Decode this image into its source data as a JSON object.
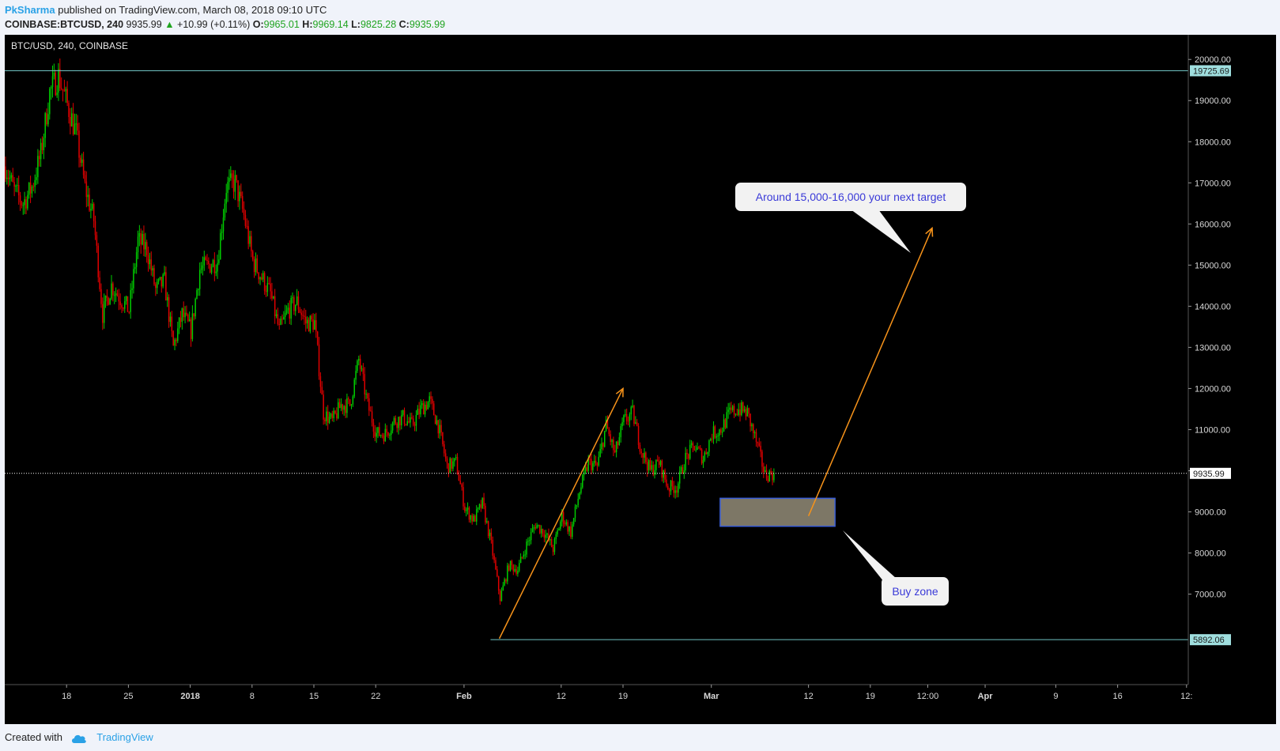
{
  "header": {
    "author": "PkSharma",
    "published_text": "published on TradingView.com, March 08, 2018 09:10 UTC",
    "symbol": "COINBASE:BTCUSD, 240",
    "last": "9935.99",
    "change_arrow": "▲",
    "change": "+10.99 (+0.11%)",
    "open_label": "O:",
    "open": "9965.01",
    "high_label": "H:",
    "high": "9969.14",
    "low_label": "L:",
    "low": "9825.28",
    "close_label": "C:",
    "close": "9935.99"
  },
  "footer": {
    "created_with": "Created with",
    "brand": "TradingView"
  },
  "colors": {
    "up": "#00cc00",
    "down": "#e00000",
    "arrow": "#f7931a",
    "hline": "#6fc2c2",
    "buy_zone_fill": "#7d7766",
    "buy_zone_stroke": "#3a5ed8",
    "callout_text": "#3a3ad8"
  },
  "chart_data": {
    "type": "candlestick",
    "pane_title": "BTC/USD, 240, COINBASE",
    "x_ticks": [
      "18",
      "25",
      "2018",
      "8",
      "15",
      "22",
      "Feb",
      "12",
      "19",
      "Mar",
      "12",
      "19",
      "12:00",
      "Apr",
      "9",
      "16",
      "12:"
    ],
    "y_ticks": [
      7000,
      8000,
      9000,
      10000,
      11000,
      12000,
      13000,
      14000,
      15000,
      16000,
      17000,
      18000,
      19000,
      20000
    ],
    "y_tick_labels": [
      "7000.00",
      "8000.00",
      "9000.00",
      "11000.00",
      "12000.00",
      "13000.00",
      "14000.00",
      "15000.00",
      "16000.00",
      "17000.00",
      "18000.00",
      "19000.00",
      "20000.00"
    ],
    "ylim": [
      4800,
      20600
    ],
    "x_range": [
      "2017-12-11",
      "2018-04-24"
    ],
    "price_path": [
      [
        "2017-12-11",
        17400
      ],
      [
        "2017-12-12",
        16800
      ],
      [
        "2017-12-13",
        16500
      ],
      [
        "2017-12-14",
        16900
      ],
      [
        "2017-12-15",
        17700
      ],
      [
        "2017-12-16",
        19200
      ],
      [
        "2017-12-17",
        19600
      ],
      [
        "2017-12-18",
        18900
      ],
      [
        "2017-12-19",
        18200
      ],
      [
        "2017-12-20",
        16900
      ],
      [
        "2017-12-21",
        16100
      ],
      [
        "2017-12-22",
        13800
      ],
      [
        "2017-12-23",
        14500
      ],
      [
        "2017-12-24",
        14200
      ],
      [
        "2017-12-25",
        13900
      ],
      [
        "2017-12-26",
        15600
      ],
      [
        "2017-12-27",
        15400
      ],
      [
        "2017-12-28",
        14400
      ],
      [
        "2017-12-29",
        14600
      ],
      [
        "2017-12-30",
        13000
      ],
      [
        "2017-12-31",
        13800
      ],
      [
        "2018-01-01",
        13400
      ],
      [
        "2018-01-02",
        14900
      ],
      [
        "2018-01-03",
        15000
      ],
      [
        "2018-01-04",
        15100
      ],
      [
        "2018-01-05",
        16900
      ],
      [
        "2018-01-06",
        17000
      ],
      [
        "2018-01-07",
        16200
      ],
      [
        "2018-01-08",
        15100
      ],
      [
        "2018-01-09",
        14700
      ],
      [
        "2018-01-10",
        14300
      ],
      [
        "2018-01-11",
        13400
      ],
      [
        "2018-01-12",
        13900
      ],
      [
        "2018-01-13",
        14100
      ],
      [
        "2018-01-14",
        13600
      ],
      [
        "2018-01-15",
        13600
      ],
      [
        "2018-01-16",
        11400
      ],
      [
        "2018-01-17",
        11200
      ],
      [
        "2018-01-18",
        11600
      ],
      [
        "2018-01-19",
        11600
      ],
      [
        "2018-01-20",
        12700
      ],
      [
        "2018-01-21",
        11600
      ],
      [
        "2018-01-22",
        10900
      ],
      [
        "2018-01-23",
        10900
      ],
      [
        "2018-01-24",
        11200
      ],
      [
        "2018-01-25",
        11300
      ],
      [
        "2018-01-26",
        11100
      ],
      [
        "2018-01-27",
        11500
      ],
      [
        "2018-01-28",
        11700
      ],
      [
        "2018-01-29",
        11100
      ],
      [
        "2018-01-30",
        10100
      ],
      [
        "2018-01-31",
        10200
      ],
      [
        "2018-02-01",
        9100
      ],
      [
        "2018-02-02",
        8800
      ],
      [
        "2018-02-03",
        9200
      ],
      [
        "2018-02-04",
        8200
      ],
      [
        "2018-02-05",
        6900
      ],
      [
        "2018-02-06",
        7700
      ],
      [
        "2018-02-07",
        7600
      ],
      [
        "2018-02-08",
        8200
      ],
      [
        "2018-02-09",
        8700
      ],
      [
        "2018-02-10",
        8500
      ],
      [
        "2018-02-11",
        8100
      ],
      [
        "2018-02-12",
        8900
      ],
      [
        "2018-02-13",
        8500
      ],
      [
        "2018-02-14",
        9500
      ],
      [
        "2018-02-15",
        10200
      ],
      [
        "2018-02-16",
        10100
      ],
      [
        "2018-02-17",
        11100
      ],
      [
        "2018-02-18",
        10400
      ],
      [
        "2018-02-19",
        11200
      ],
      [
        "2018-02-20",
        11400
      ],
      [
        "2018-02-21",
        10500
      ],
      [
        "2018-02-22",
        10000
      ],
      [
        "2018-02-23",
        10200
      ],
      [
        "2018-02-24",
        9600
      ],
      [
        "2018-02-25",
        9600
      ],
      [
        "2018-02-26",
        10300
      ],
      [
        "2018-02-27",
        10600
      ],
      [
        "2018-02-28",
        10300
      ],
      [
        "2018-03-01",
        10900
      ],
      [
        "2018-03-02",
        11000
      ],
      [
        "2018-03-03",
        11400
      ],
      [
        "2018-03-04",
        11500
      ],
      [
        "2018-03-05",
        11400
      ],
      [
        "2018-03-06",
        10700
      ],
      [
        "2018-03-07",
        9900
      ],
      [
        "2018-03-08",
        9936
      ]
    ],
    "annotations": {
      "top_line": 19725.69,
      "top_line_label": "19725.69",
      "last_price_line": 9935.99,
      "last_price_label": "9935.99",
      "bottom_line": 5892.06,
      "bottom_line_label": "5892.06",
      "arrow1": {
        "from": [
          "2018-02-05",
          5920
        ],
        "to": [
          "2018-02-19",
          12000
        ]
      },
      "arrow2": {
        "from": [
          "2018-03-12",
          8900
        ],
        "to": [
          "2018-03-26",
          15900
        ]
      },
      "buy_zone": {
        "x": [
          "2018-03-02",
          "2018-03-15"
        ],
        "y": [
          8650,
          9330
        ],
        "label": "Buy zone"
      },
      "target_callout": "Around 15,000-16,000 your next target"
    }
  }
}
